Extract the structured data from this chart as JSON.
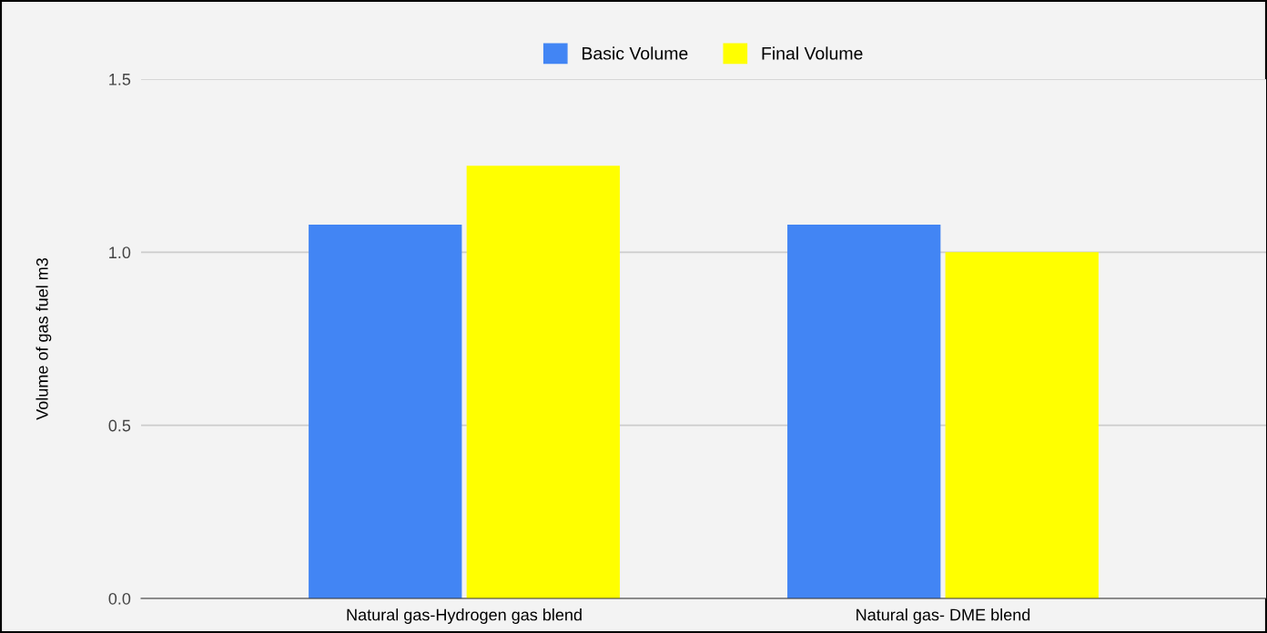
{
  "chart_data": {
    "type": "bar",
    "ylabel": "Volume of gas fuel m3",
    "categories": [
      "Natural gas-Hydrogen gas blend",
      "Natural gas- DME blend"
    ],
    "series": [
      {
        "name": "Basic Volume",
        "color": "#4285f4",
        "values": [
          1.08,
          1.08
        ]
      },
      {
        "name": "Final Volume",
        "color": "#ffff00",
        "values": [
          1.25,
          1.0
        ]
      }
    ],
    "ylim": [
      0,
      1.5
    ],
    "yticks": [
      {
        "value": 0,
        "label": "0.0"
      },
      {
        "value": 0.5,
        "label": "0.5"
      },
      {
        "value": 1,
        "label": "1.0"
      },
      {
        "value": 1.5,
        "label": "1.5"
      }
    ],
    "grid": "y",
    "legend": "top"
  }
}
